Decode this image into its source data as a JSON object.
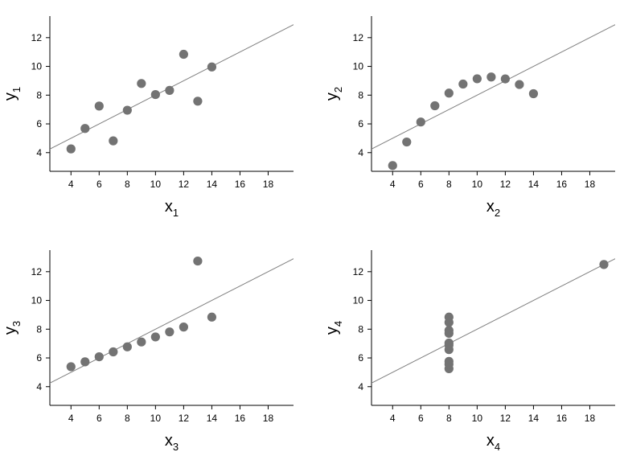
{
  "colors": {
    "point": "#737373",
    "line": "#808080",
    "axis": "#000000"
  },
  "chart_data": [
    {
      "type": "scatter",
      "xlabel": "x",
      "xlabel_sub": "1",
      "ylabel": "y",
      "ylabel_sub": "1",
      "xlim": [
        2.5,
        19.8
      ],
      "ylim": [
        2.7,
        13.5
      ],
      "xticks": [
        "4",
        "6",
        "8",
        "10",
        "12",
        "14",
        "16",
        "18"
      ],
      "yticks": [
        "4",
        "6",
        "8",
        "10",
        "12"
      ],
      "fit_line": {
        "intercept": 3.0,
        "slope": 0.5
      },
      "x": [
        10,
        8,
        13,
        9,
        11,
        14,
        6,
        4,
        12,
        7,
        5
      ],
      "y": [
        8.04,
        6.95,
        7.58,
        8.81,
        8.33,
        9.96,
        7.24,
        4.26,
        10.84,
        4.82,
        5.68
      ]
    },
    {
      "type": "scatter",
      "xlabel": "x",
      "xlabel_sub": "2",
      "ylabel": "y",
      "ylabel_sub": "2",
      "xlim": [
        2.5,
        19.8
      ],
      "ylim": [
        2.7,
        13.5
      ],
      "xticks": [
        "4",
        "6",
        "8",
        "10",
        "12",
        "14",
        "16",
        "18"
      ],
      "yticks": [
        "4",
        "6",
        "8",
        "10",
        "12"
      ],
      "fit_line": {
        "intercept": 3.0,
        "slope": 0.5
      },
      "x": [
        10,
        8,
        13,
        9,
        11,
        14,
        6,
        4,
        12,
        7,
        5
      ],
      "y": [
        9.14,
        8.14,
        8.74,
        8.77,
        9.26,
        8.1,
        6.13,
        3.1,
        9.13,
        7.26,
        4.74
      ]
    },
    {
      "type": "scatter",
      "xlabel": "x",
      "xlabel_sub": "3",
      "ylabel": "y",
      "ylabel_sub": "3",
      "xlim": [
        2.5,
        19.8
      ],
      "ylim": [
        2.7,
        13.5
      ],
      "xticks": [
        "4",
        "6",
        "8",
        "10",
        "12",
        "14",
        "16",
        "18"
      ],
      "yticks": [
        "4",
        "6",
        "8",
        "10",
        "12"
      ],
      "fit_line": {
        "intercept": 3.0,
        "slope": 0.5
      },
      "x": [
        10,
        8,
        13,
        9,
        11,
        14,
        6,
        4,
        12,
        7,
        5
      ],
      "y": [
        7.46,
        6.77,
        12.74,
        7.11,
        7.81,
        8.84,
        6.08,
        5.39,
        8.15,
        6.42,
        5.73
      ]
    },
    {
      "type": "scatter",
      "xlabel": "x",
      "xlabel_sub": "4",
      "ylabel": "y",
      "ylabel_sub": "4",
      "xlim": [
        2.5,
        19.8
      ],
      "ylim": [
        2.7,
        13.5
      ],
      "xticks": [
        "4",
        "6",
        "8",
        "10",
        "12",
        "14",
        "16",
        "18"
      ],
      "yticks": [
        "4",
        "6",
        "8",
        "10",
        "12"
      ],
      "fit_line": {
        "intercept": 3.0,
        "slope": 0.5
      },
      "x": [
        8,
        8,
        8,
        8,
        8,
        8,
        8,
        19,
        8,
        8,
        8
      ],
      "y": [
        6.58,
        5.76,
        7.71,
        8.84,
        8.47,
        7.04,
        5.25,
        12.5,
        5.56,
        7.91,
        6.89
      ]
    }
  ]
}
